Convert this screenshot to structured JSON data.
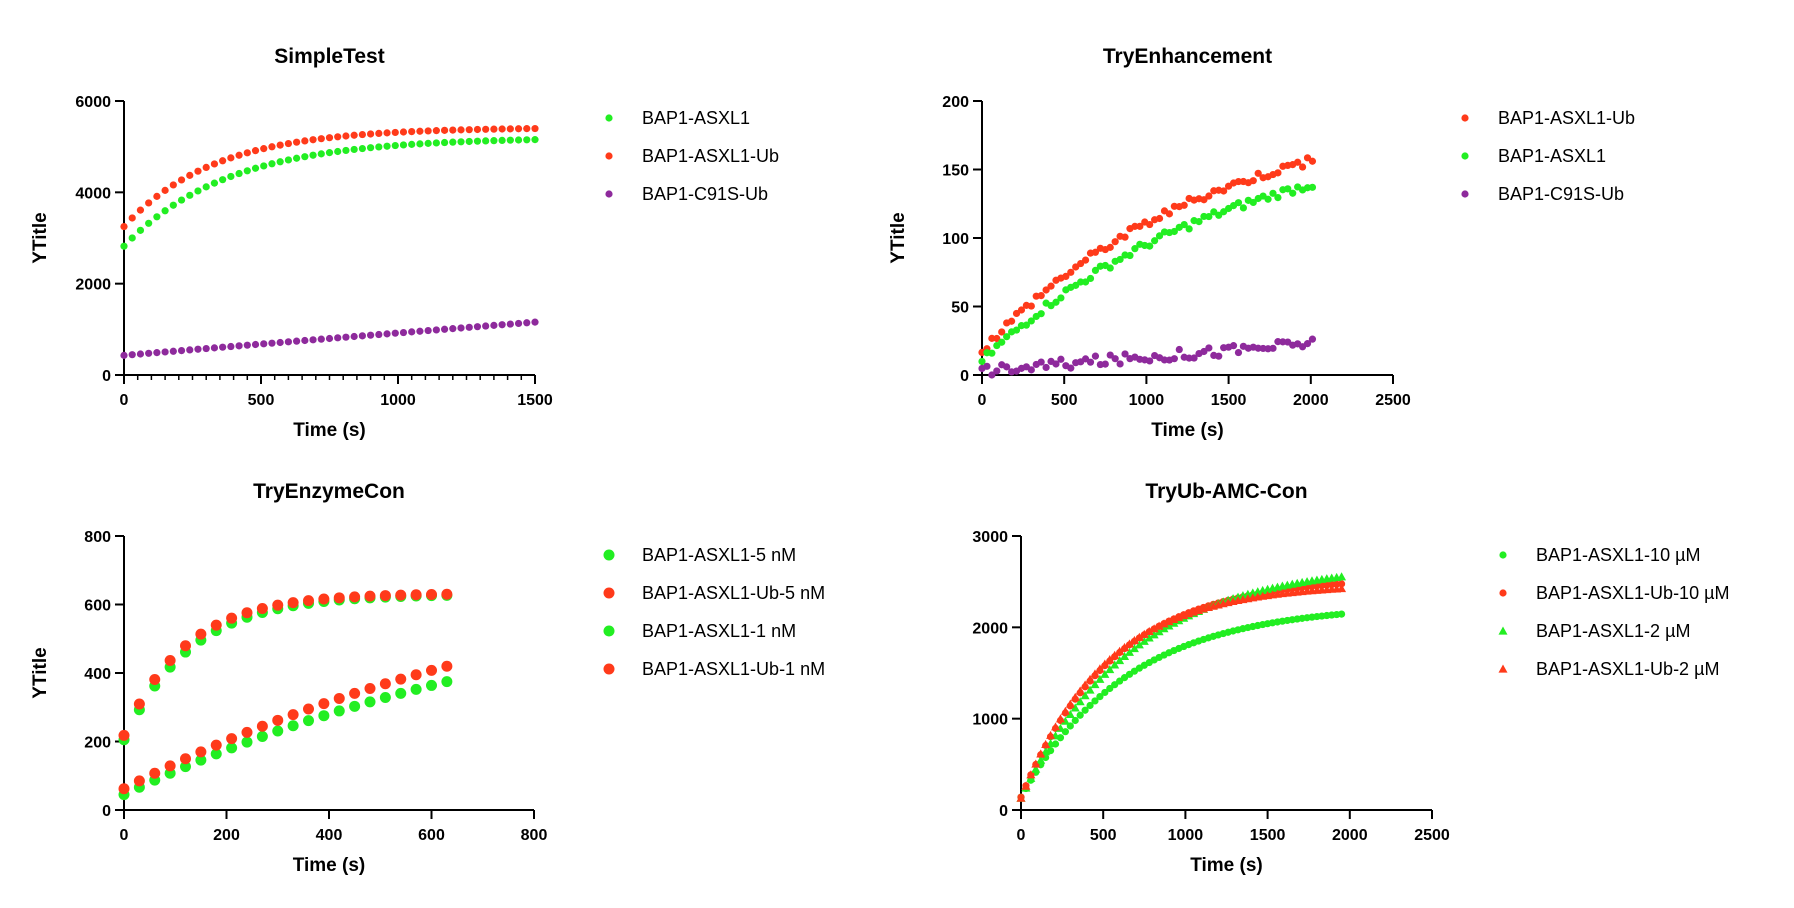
{
  "chart_data": [
    {
      "type": "scatter",
      "title": "SimpleTest",
      "xlabel": "Time (s)",
      "ylabel": "YTitle",
      "xlim": [
        0,
        1500
      ],
      "ylim": [
        0,
        6000
      ],
      "xticks": [
        "0",
        "500",
        "1000",
        "1500"
      ],
      "yticks": [
        "0",
        "2000",
        "4000",
        "6000"
      ],
      "minor_x_ticks": true,
      "legend_position": "right",
      "series": [
        {
          "name": "BAP1-ASXL1",
          "color": "#22ee22",
          "marker": "circle",
          "t_start": 0,
          "t_step": 30,
          "count": 51,
          "y0": 2820,
          "ymax": 5200,
          "tau": 380
        },
        {
          "name": "BAP1-ASXL1-Ub",
          "color": "#ff3a1a",
          "marker": "circle",
          "t_start": 0,
          "t_step": 30,
          "count": 51,
          "y0": 3250,
          "ymax": 5420,
          "tau": 330
        },
        {
          "name": "BAP1-C91S-Ub",
          "color": "#8e2a9c",
          "marker": "circle",
          "t_start": 0,
          "t_step": 30,
          "count": 51,
          "y0": 430,
          "slope": 0.5,
          "curve": -1e-05
        }
      ]
    },
    {
      "type": "scatter",
      "title": "TryEnhancement",
      "xlabel": "Time (s)",
      "ylabel": "YTitle",
      "xlim": [
        0,
        2500
      ],
      "ylim": [
        0,
        200
      ],
      "xticks": [
        "0",
        "500",
        "1000",
        "1500",
        "2000",
        "2500"
      ],
      "yticks": [
        "0",
        "50",
        "100",
        "150",
        "200"
      ],
      "minor_x_ticks": false,
      "legend_position": "right",
      "series": [
        {
          "name": "BAP1-ASXL1-Ub",
          "color": "#ff3a1a",
          "marker": "circle",
          "t_start": 0,
          "t_step": 30,
          "count": 68,
          "y0": 18,
          "ymax": 200,
          "tau": 1400,
          "noise": 3
        },
        {
          "name": "BAP1-ASXL1",
          "color": "#22ee22",
          "marker": "circle",
          "t_start": 0,
          "t_step": 30,
          "count": 68,
          "y0": 10,
          "ymax": 185,
          "tau": 1500,
          "noise": 3
        },
        {
          "name": "BAP1-C91S-Ub",
          "color": "#8e2a9c",
          "marker": "circle",
          "t_start": 0,
          "t_step": 30,
          "count": 68,
          "y0": 3,
          "slope": 0.01,
          "curve": 0,
          "noise": 4
        }
      ]
    },
    {
      "type": "scatter",
      "title": "TryEnzymeCon",
      "xlabel": "Time (s)",
      "ylabel": "YTitle",
      "xlim": [
        0,
        800
      ],
      "ylim": [
        0,
        800
      ],
      "xticks": [
        "0",
        "200",
        "400",
        "600",
        "800"
      ],
      "yticks": [
        "0",
        "200",
        "400",
        "600",
        "800"
      ],
      "minor_x_ticks": false,
      "legend_position": "right",
      "series": [
        {
          "name": "BAP1-ASXL1-5 nM",
          "color": "#22ee22",
          "marker": "circle-large",
          "t_start": 0,
          "t_step": 30,
          "count": 22,
          "y0": 205,
          "ymax": 630,
          "tau": 130
        },
        {
          "name": "BAP1-ASXL1-Ub-5 nM",
          "color": "#ff3a1a",
          "marker": "circle-large",
          "t_start": 0,
          "t_step": 30,
          "count": 22,
          "y0": 218,
          "ymax": 632,
          "tau": 120
        },
        {
          "name": "BAP1-ASXL1-1 nM",
          "color": "#22ee22",
          "marker": "circle-large",
          "t_start": 0,
          "t_step": 30,
          "count": 22,
          "y0": 45,
          "ymax": 700,
          "tau": 900
        },
        {
          "name": "BAP1-ASXL1-Ub-1 nM",
          "color": "#ff3a1a",
          "marker": "circle-large",
          "t_start": 0,
          "t_step": 30,
          "count": 22,
          "y0": 62,
          "ymax": 800,
          "tau": 950
        }
      ]
    },
    {
      "type": "scatter",
      "title": "TryUb-AMC-Con",
      "xlabel": "Time (s)",
      "ylabel": "",
      "xlim": [
        0,
        2500
      ],
      "ylim": [
        0,
        3000
      ],
      "xticks": [
        "0",
        "500",
        "1000",
        "1500",
        "2000",
        "2500"
      ],
      "yticks": [
        "0",
        "1000",
        "2000",
        "3000"
      ],
      "minor_x_ticks": false,
      "legend_position": "right",
      "series": [
        {
          "name": "BAP1-ASXL1-10 µM",
          "color": "#22ee22",
          "marker": "circle",
          "t_start": 0,
          "t_step": 30,
          "count": 66,
          "y0": 140,
          "ymax": 2250,
          "tau": 650
        },
        {
          "name": "BAP1-ASXL1-Ub-10 µM",
          "color": "#ff3a1a",
          "marker": "circle",
          "t_start": 0,
          "t_step": 30,
          "count": 66,
          "y0": 140,
          "ymax": 2550,
          "tau": 560
        },
        {
          "name": "BAP1-ASXL1-2 µM",
          "color": "#22ee22",
          "marker": "triangle",
          "t_start": 0,
          "t_step": 30,
          "count": 66,
          "y0": 130,
          "ymax": 2700,
          "tau": 680
        },
        {
          "name": "BAP1-ASXL1-Ub-2 µM",
          "color": "#ff3a1a",
          "marker": "triangle",
          "t_start": 0,
          "t_step": 30,
          "count": 66,
          "y0": 130,
          "ymax": 2480,
          "tau": 520
        }
      ]
    }
  ]
}
